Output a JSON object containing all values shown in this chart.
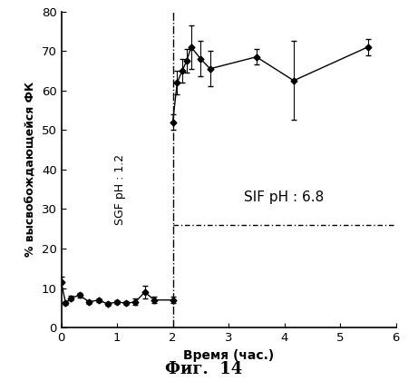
{
  "x_sgf": [
    0.0,
    0.08,
    0.17,
    0.33,
    0.5,
    0.67,
    0.83,
    1.0,
    1.17,
    1.33,
    1.5,
    1.67,
    2.0
  ],
  "y_sgf": [
    11.5,
    6.2,
    7.5,
    8.2,
    6.5,
    7.0,
    6.0,
    6.5,
    6.2,
    6.5,
    9.0,
    7.0,
    7.0
  ],
  "yerr_sgf": [
    1.5,
    0.5,
    0.5,
    0.5,
    0.5,
    0.5,
    0.5,
    0.5,
    0.5,
    0.8,
    1.5,
    0.8,
    0.8
  ],
  "x_sif": [
    2.0,
    2.08,
    2.17,
    2.25,
    2.33,
    2.5,
    2.67,
    3.5,
    4.17,
    5.5
  ],
  "y_sif": [
    52.0,
    62.0,
    65.0,
    67.5,
    71.0,
    68.0,
    65.5,
    68.5,
    62.5,
    71.0
  ],
  "yerr_sif": [
    2.0,
    3.0,
    3.0,
    3.0,
    5.5,
    4.5,
    4.5,
    2.0,
    10.0,
    2.0
  ],
  "sgf_label": "SGF pH : 1.2",
  "sif_label": "SIF pH : 6.8",
  "xlabel": "Время (час.)",
  "ylabel": "% высвобождающейся ФК",
  "fig_title": "Фиг.  14",
  "vline_x": 2.0,
  "hline_y": 26.0,
  "xlim": [
    0,
    6
  ],
  "ylim": [
    0,
    80
  ],
  "yticks": [
    0,
    10,
    20,
    30,
    40,
    50,
    60,
    70,
    80
  ],
  "xticks": [
    0,
    1,
    2,
    3,
    4,
    5,
    6
  ]
}
